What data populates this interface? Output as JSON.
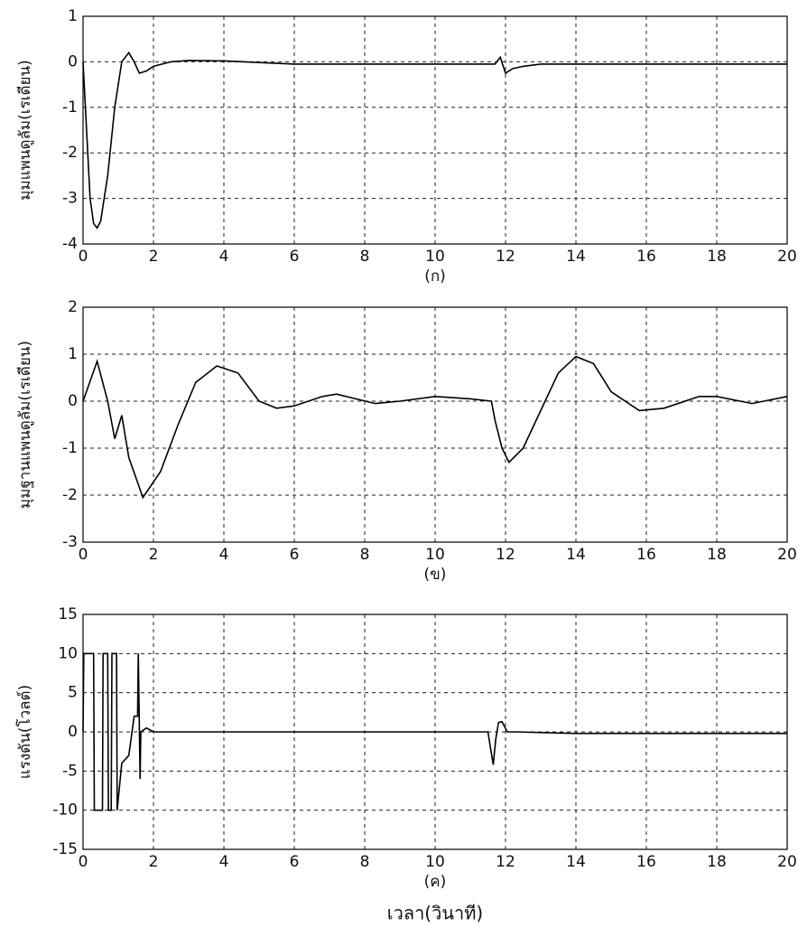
{
  "chart_data": [
    {
      "type": "line",
      "y_label": "มุมแพนดูลัม(เรเดียน)",
      "caption": "(ก)",
      "x": [
        0,
        0.1,
        0.2,
        0.3,
        0.4,
        0.5,
        0.7,
        0.9,
        1.1,
        1.3,
        1.45,
        1.6,
        1.8,
        2,
        2.5,
        3,
        4,
        6,
        8,
        10,
        11.7,
        11.85,
        12,
        12.2,
        12.5,
        13,
        14,
        16,
        18,
        20
      ],
      "values": [
        0,
        -1.5,
        -3.0,
        -3.55,
        -3.65,
        -3.5,
        -2.5,
        -1.0,
        0,
        0.2,
        0,
        -0.25,
        -0.2,
        -0.1,
        0,
        0.03,
        0.02,
        -0.05,
        -0.05,
        -0.05,
        -0.05,
        0.1,
        -0.25,
        -0.15,
        -0.1,
        -0.05,
        -0.05,
        -0.05,
        -0.05,
        -0.05
      ],
      "color": "#000000",
      "xlim": [
        0,
        20
      ],
      "xticks": [
        0,
        2,
        4,
        6,
        8,
        10,
        12,
        14,
        16,
        18,
        20
      ],
      "ylim": [
        -4,
        1
      ],
      "yticks": [
        -4,
        -3,
        -2,
        -1,
        0,
        1
      ],
      "grid": true
    },
    {
      "type": "line",
      "y_label": "มุมฐานแพนดูลัม(เรเดียน)",
      "caption": "(ข)",
      "x": [
        0,
        0.4,
        0.7,
        0.9,
        1.1,
        1.3,
        1.7,
        2.2,
        2.7,
        3.2,
        3.8,
        4.4,
        5,
        5.5,
        6,
        6.8,
        7.2,
        8.3,
        9,
        10,
        11,
        11.6,
        11.7,
        11.9,
        12.1,
        12.5,
        13,
        13.5,
        14,
        14.5,
        15,
        15.8,
        16.5,
        17.5,
        18,
        19,
        20
      ],
      "values": [
        0,
        0.85,
        0,
        -0.8,
        -0.3,
        -1.2,
        -2.05,
        -1.5,
        -0.5,
        0.4,
        0.75,
        0.6,
        0,
        -0.15,
        -0.1,
        0.1,
        0.15,
        -0.05,
        0,
        0.1,
        0.05,
        0,
        -0.4,
        -1.0,
        -1.3,
        -1.0,
        -0.2,
        0.6,
        0.95,
        0.8,
        0.2,
        -0.2,
        -0.15,
        0.1,
        0.1,
        -0.05,
        0.1
      ],
      "color": "#000000",
      "xlim": [
        0,
        20
      ],
      "xticks": [
        0,
        2,
        4,
        6,
        8,
        10,
        12,
        14,
        16,
        18,
        20
      ],
      "ylim": [
        -3,
        2
      ],
      "yticks": [
        -3,
        -2,
        -1,
        0,
        1,
        2
      ],
      "grid": true
    },
    {
      "type": "line",
      "y_label": "แรงดัน(โวลต์)",
      "caption": "(ค)",
      "x_label": "เวลา(วินาที)",
      "x": [
        0,
        0.02,
        0.3,
        0.32,
        0.55,
        0.57,
        0.7,
        0.72,
        0.8,
        0.82,
        0.95,
        0.97,
        1.1,
        1.3,
        1.45,
        1.55,
        1.57,
        1.62,
        1.64,
        1.8,
        2,
        4,
        6,
        8,
        10,
        11.5,
        11.65,
        11.72,
        11.8,
        11.9,
        12.05,
        12.3,
        14,
        16,
        18,
        20
      ],
      "values": [
        0,
        10,
        10,
        -10,
        -10,
        10,
        10,
        -10,
        -10,
        10,
        10,
        -10,
        -4,
        -3,
        2,
        2,
        10,
        -6,
        0,
        0.5,
        0,
        0,
        0,
        0,
        0,
        0,
        -4.2,
        -1,
        1.2,
        1.3,
        0,
        0,
        -0.2,
        -0.2,
        -0.2,
        -0.2
      ],
      "color": "#000000",
      "xlim": [
        0,
        20
      ],
      "xticks": [
        0,
        2,
        4,
        6,
        8,
        10,
        12,
        14,
        16,
        18,
        20
      ],
      "ylim": [
        -15,
        15
      ],
      "yticks": [
        -15,
        -10,
        -5,
        0,
        5,
        10,
        15
      ],
      "grid": true
    }
  ]
}
